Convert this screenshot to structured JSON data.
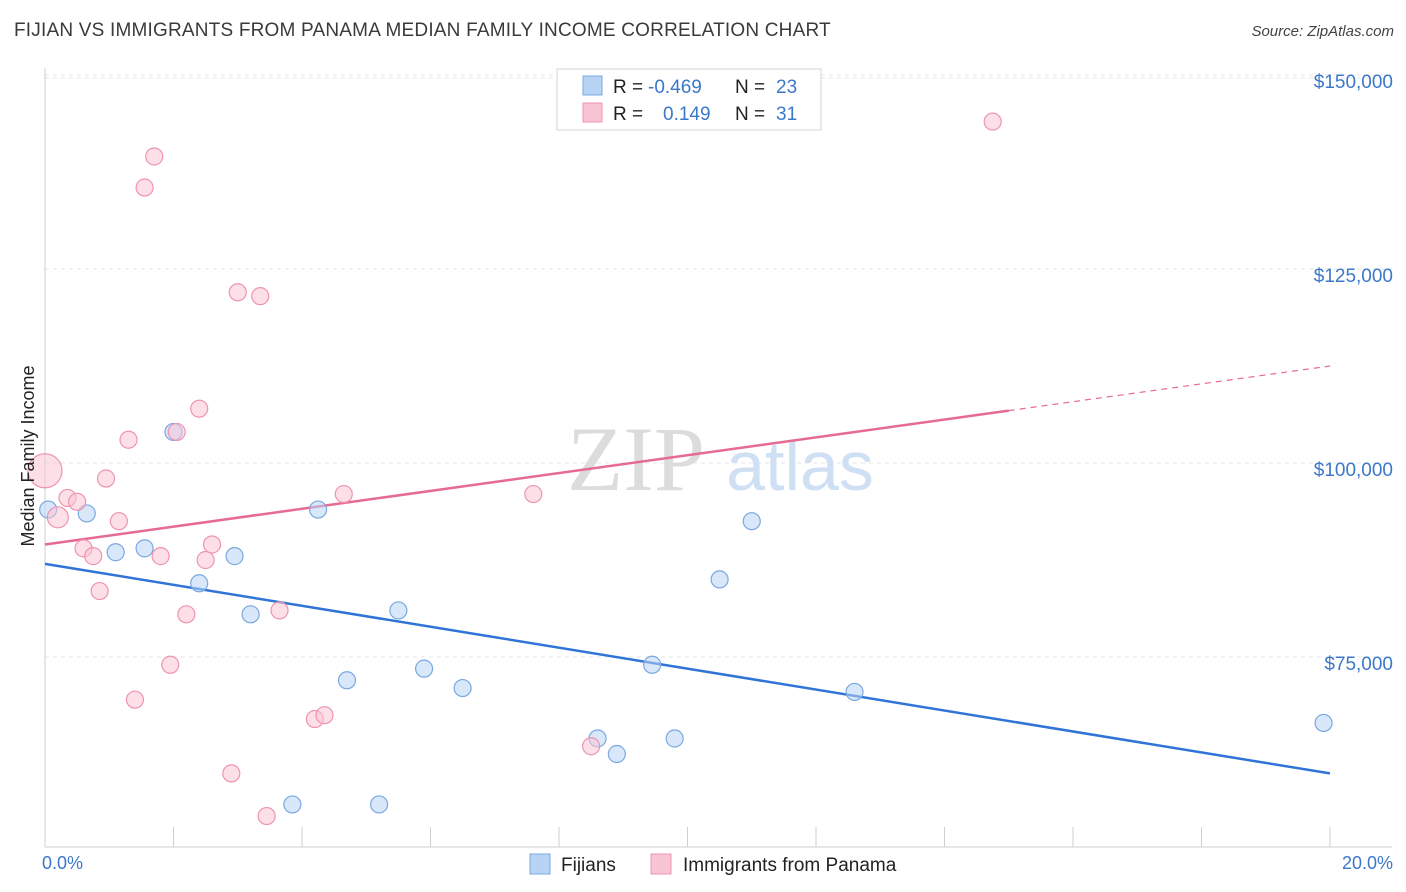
{
  "title": "FIJIAN VS IMMIGRANTS FROM PANAMA MEDIAN FAMILY INCOME CORRELATION CHART",
  "source": "Source: ZipAtlas.com",
  "watermark": {
    "zip": "ZIP",
    "atlas": "atlas"
  },
  "stats_box": {
    "rows": [
      {
        "r_label": "R =",
        "r_value": "-0.469",
        "n_label": "N =",
        "n_value": "23",
        "color": "#b8d4f5"
      },
      {
        "r_label": "R =",
        "r_value": "0.149",
        "n_label": "N =",
        "n_value": "31",
        "color": "#f9c4d4"
      }
    ]
  },
  "chart_data": {
    "type": "scatter",
    "xlabel": "",
    "ylabel": "Median Family Income",
    "xlim": [
      0,
      20
    ],
    "ylim": [
      52000,
      152000
    ],
    "x_tick_labels": [
      {
        "value": 0,
        "label": "0.0%"
      },
      {
        "value": 20,
        "label": "20.0%"
      }
    ],
    "y_tick_labels": [
      {
        "value": 75000,
        "label": "$75,000"
      },
      {
        "value": 100000,
        "label": "$100,000"
      },
      {
        "value": 125000,
        "label": "$125,000"
      },
      {
        "value": 150000,
        "label": "$150,000"
      }
    ],
    "grid": true,
    "legend_position": "bottom-center",
    "series": [
      {
        "name": "Fijians",
        "color": "#b8d4f5",
        "stroke": "#7aa8e0",
        "line_color": "#2f74d6",
        "points": [
          [
            0.05,
            94000
          ],
          [
            0.65,
            93500
          ],
          [
            1.1,
            88500
          ],
          [
            1.55,
            89000
          ],
          [
            2.0,
            104000
          ],
          [
            2.4,
            84500
          ],
          [
            2.95,
            88000
          ],
          [
            3.2,
            80500
          ],
          [
            3.85,
            56000
          ],
          [
            4.25,
            94000
          ],
          [
            4.7,
            72000
          ],
          [
            5.2,
            56000
          ],
          [
            5.5,
            81000
          ],
          [
            5.9,
            73500
          ],
          [
            6.5,
            71000
          ],
          [
            8.6,
            64500
          ],
          [
            8.9,
            62500
          ],
          [
            9.45,
            74000
          ],
          [
            9.8,
            64500
          ],
          [
            10.5,
            85000
          ],
          [
            11.0,
            92500
          ],
          [
            12.6,
            70500
          ],
          [
            19.9,
            66500
          ]
        ],
        "trend": {
          "x": [
            0,
            20
          ],
          "y": [
            87000,
            60000
          ],
          "dashed_from": null
        }
      },
      {
        "name": "Immigrants from Panama",
        "color": "#f9c4d4",
        "stroke": "#ee94ae",
        "line_color": "#e66a92",
        "points": [
          [
            0.0,
            99000
          ],
          [
            0.2,
            93000
          ],
          [
            0.35,
            95500
          ],
          [
            0.5,
            95000
          ],
          [
            0.6,
            89000
          ],
          [
            0.75,
            88000
          ],
          [
            0.85,
            83500
          ],
          [
            0.95,
            98000
          ],
          [
            1.15,
            92500
          ],
          [
            1.3,
            103000
          ],
          [
            1.4,
            69500
          ],
          [
            1.55,
            135500
          ],
          [
            1.7,
            139500
          ],
          [
            1.8,
            88000
          ],
          [
            1.95,
            74000
          ],
          [
            2.05,
            104000
          ],
          [
            2.2,
            80500
          ],
          [
            2.4,
            107000
          ],
          [
            2.5,
            87500
          ],
          [
            2.6,
            89500
          ],
          [
            2.9,
            60000
          ],
          [
            3.0,
            122000
          ],
          [
            3.35,
            121500
          ],
          [
            3.45,
            54500
          ],
          [
            3.65,
            81000
          ],
          [
            4.2,
            67000
          ],
          [
            4.35,
            67500
          ],
          [
            4.65,
            96000
          ],
          [
            7.6,
            96000
          ],
          [
            8.5,
            63500
          ],
          [
            14.75,
            144000
          ]
        ],
        "trend": {
          "x": [
            0,
            20
          ],
          "y": [
            89500,
            112500
          ],
          "dashed_from": 15
        }
      }
    ]
  }
}
